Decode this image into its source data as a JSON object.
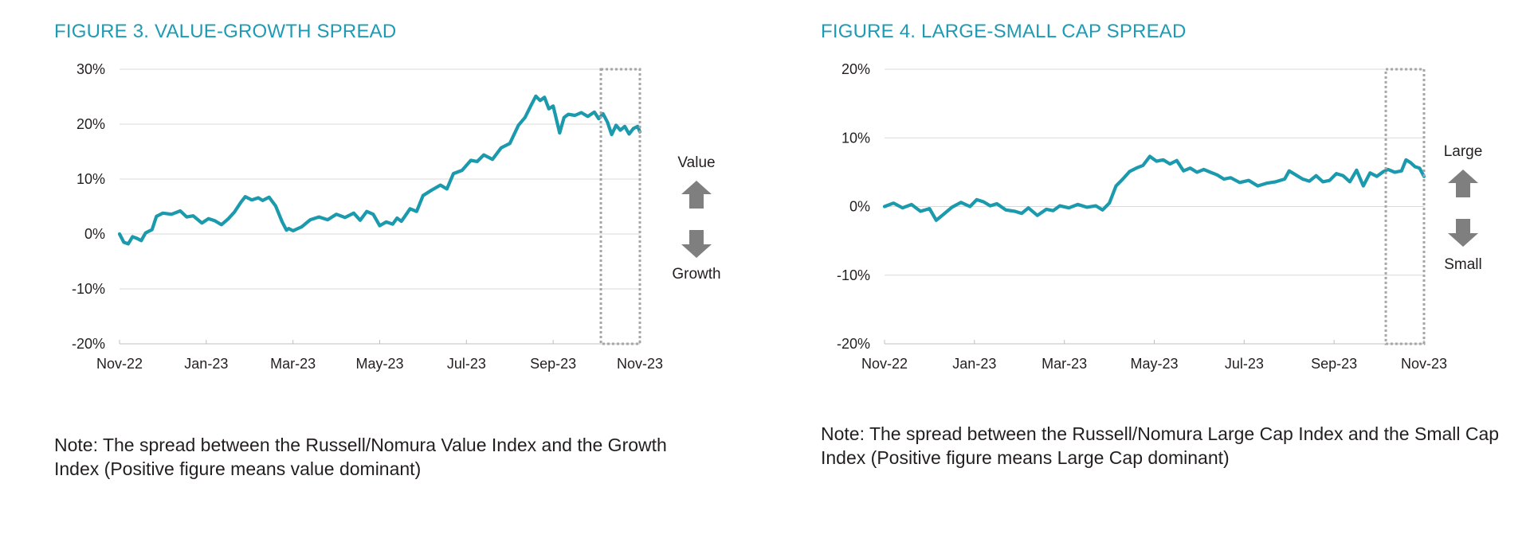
{
  "colors": {
    "line": "#1b9aad",
    "title": "#1e9bb4",
    "arrow": "#7f7f7f",
    "grid": "#d9d9d9",
    "box": "#a6a6a6"
  },
  "chart_data": [
    {
      "type": "line",
      "title": "FIGURE 3. VALUE-GROWTH SPREAD",
      "note": "Note: The spread between the Russell/Nomura Value Index and the Growth Index (Positive figure means value dominant)",
      "xlabel": "",
      "ylabel": "",
      "ylim": [
        -20,
        30
      ],
      "yticks": [
        30,
        20,
        10,
        0,
        -10,
        -20
      ],
      "ytick_labels": [
        "30%",
        "20%",
        "10%",
        "0%",
        "-10%",
        "-20%"
      ],
      "xlim": [
        0,
        12
      ],
      "xticks": [
        0,
        2,
        4,
        6,
        8,
        10,
        12
      ],
      "xtick_labels": [
        "Nov-22",
        "Jan-23",
        "Mar-23",
        "May-23",
        "Jul-23",
        "Sep-23",
        "Nov-23"
      ],
      "grid": true,
      "highlight_range": [
        11.1,
        12.0
      ],
      "annotation": {
        "up": "Value",
        "down": "Growth"
      },
      "series": [
        {
          "name": "Value-Growth Spread",
          "x": [
            0,
            0.1,
            0.2,
            0.3,
            0.4,
            0.5,
            0.6,
            0.75,
            0.85,
            1.0,
            1.2,
            1.4,
            1.55,
            1.7,
            1.9,
            2.05,
            2.2,
            2.35,
            2.5,
            2.65,
            2.8,
            2.9,
            3.05,
            3.2,
            3.3,
            3.45,
            3.6,
            3.75,
            3.85,
            3.9,
            4.0,
            4.2,
            4.4,
            4.6,
            4.8,
            5.0,
            5.2,
            5.4,
            5.55,
            5.7,
            5.85,
            6.0,
            6.15,
            6.3,
            6.4,
            6.5,
            6.7,
            6.85,
            7.0,
            7.2,
            7.4,
            7.55,
            7.7,
            7.9,
            8.1,
            8.25,
            8.4,
            8.6,
            8.8,
            9.0,
            9.2,
            9.35,
            9.5,
            9.6,
            9.7,
            9.8,
            9.9,
            10.0,
            10.15,
            10.25,
            10.35,
            10.5,
            10.65,
            10.8,
            10.95,
            11.05,
            11.15,
            11.25,
            11.35,
            11.45,
            11.55,
            11.65,
            11.75,
            11.85,
            11.95,
            12.0
          ],
          "y": [
            0,
            -1.5,
            -1.8,
            -0.5,
            -0.8,
            -1.2,
            0.2,
            0.8,
            3.2,
            3.8,
            3.6,
            4.2,
            3.1,
            3.3,
            2.0,
            2.8,
            2.4,
            1.7,
            2.7,
            4.0,
            5.8,
            6.8,
            6.2,
            6.6,
            6.1,
            6.7,
            5.1,
            2.2,
            0.7,
            1.0,
            0.6,
            1.3,
            2.6,
            3.1,
            2.6,
            3.6,
            3.0,
            3.8,
            2.5,
            4.1,
            3.6,
            1.5,
            2.2,
            1.8,
            2.9,
            2.3,
            4.6,
            4.1,
            7.0,
            8.0,
            8.9,
            8.2,
            11.0,
            11.6,
            13.4,
            13.2,
            14.4,
            13.6,
            15.7,
            16.5,
            19.8,
            21.2,
            23.6,
            25.1,
            24.3,
            24.9,
            22.8,
            23.3,
            18.4,
            21.2,
            21.8,
            21.6,
            22.1,
            21.4,
            22.2,
            21.0,
            21.9,
            20.4,
            18.1,
            19.8,
            18.9,
            19.6,
            18.2,
            19.2,
            19.6,
            18.6
          ]
        }
      ]
    },
    {
      "type": "line",
      "title": "FIGURE 4. LARGE-SMALL CAP SPREAD",
      "note": "Note: The spread between the Russell/Nomura Large Cap Index and the Small Cap Index (Positive figure means Large Cap dominant)",
      "xlabel": "",
      "ylabel": "",
      "ylim": [
        -20,
        20
      ],
      "yticks": [
        20,
        10,
        0,
        -10,
        -20
      ],
      "ytick_labels": [
        "20%",
        "10%",
        "0%",
        "-10%",
        "-20%"
      ],
      "xlim": [
        0,
        12
      ],
      "xticks": [
        0,
        2,
        4,
        6,
        8,
        10,
        12
      ],
      "xtick_labels": [
        "Nov-22",
        "Jan-23",
        "Mar-23",
        "May-23",
        "Jul-23",
        "Sep-23",
        "Nov-23"
      ],
      "grid": true,
      "highlight_range": [
        11.15,
        12.0
      ],
      "annotation": {
        "up": "Large",
        "down": "Small"
      },
      "series": [
        {
          "name": "Large-Small Cap Spread",
          "x": [
            0,
            0.2,
            0.4,
            0.6,
            0.8,
            1.0,
            1.15,
            1.3,
            1.5,
            1.7,
            1.9,
            2.05,
            2.2,
            2.35,
            2.5,
            2.7,
            2.9,
            3.05,
            3.2,
            3.4,
            3.6,
            3.75,
            3.9,
            4.1,
            4.3,
            4.5,
            4.7,
            4.85,
            5.0,
            5.15,
            5.3,
            5.45,
            5.6,
            5.75,
            5.9,
            6.05,
            6.2,
            6.35,
            6.5,
            6.65,
            6.8,
            6.95,
            7.1,
            7.25,
            7.4,
            7.55,
            7.7,
            7.9,
            8.1,
            8.3,
            8.5,
            8.7,
            8.9,
            9.0,
            9.15,
            9.3,
            9.45,
            9.6,
            9.75,
            9.9,
            10.05,
            10.2,
            10.35,
            10.5,
            10.65,
            10.8,
            10.95,
            11.1,
            11.2,
            11.35,
            11.5,
            11.6,
            11.7,
            11.8,
            11.9,
            12.0
          ],
          "y": [
            0,
            0.5,
            -0.2,
            0.3,
            -0.7,
            -0.3,
            -2.0,
            -1.2,
            -0.1,
            0.6,
            0.0,
            1.0,
            0.7,
            0.1,
            0.4,
            -0.5,
            -0.7,
            -1.0,
            -0.2,
            -1.3,
            -0.4,
            -0.6,
            0.1,
            -0.2,
            0.3,
            -0.1,
            0.1,
            -0.5,
            0.5,
            3.0,
            4.0,
            5.1,
            5.6,
            6.0,
            7.3,
            6.6,
            6.8,
            6.2,
            6.7,
            5.2,
            5.6,
            5.0,
            5.4,
            5.0,
            4.6,
            4.0,
            4.2,
            3.5,
            3.8,
            3.0,
            3.4,
            3.6,
            4.0,
            5.2,
            4.6,
            4.0,
            3.7,
            4.5,
            3.6,
            3.8,
            4.8,
            4.5,
            3.6,
            5.3,
            3.0,
            4.9,
            4.4,
            5.1,
            5.4,
            5.0,
            5.2,
            6.8,
            6.4,
            5.8,
            5.6,
            4.4
          ]
        }
      ]
    }
  ]
}
